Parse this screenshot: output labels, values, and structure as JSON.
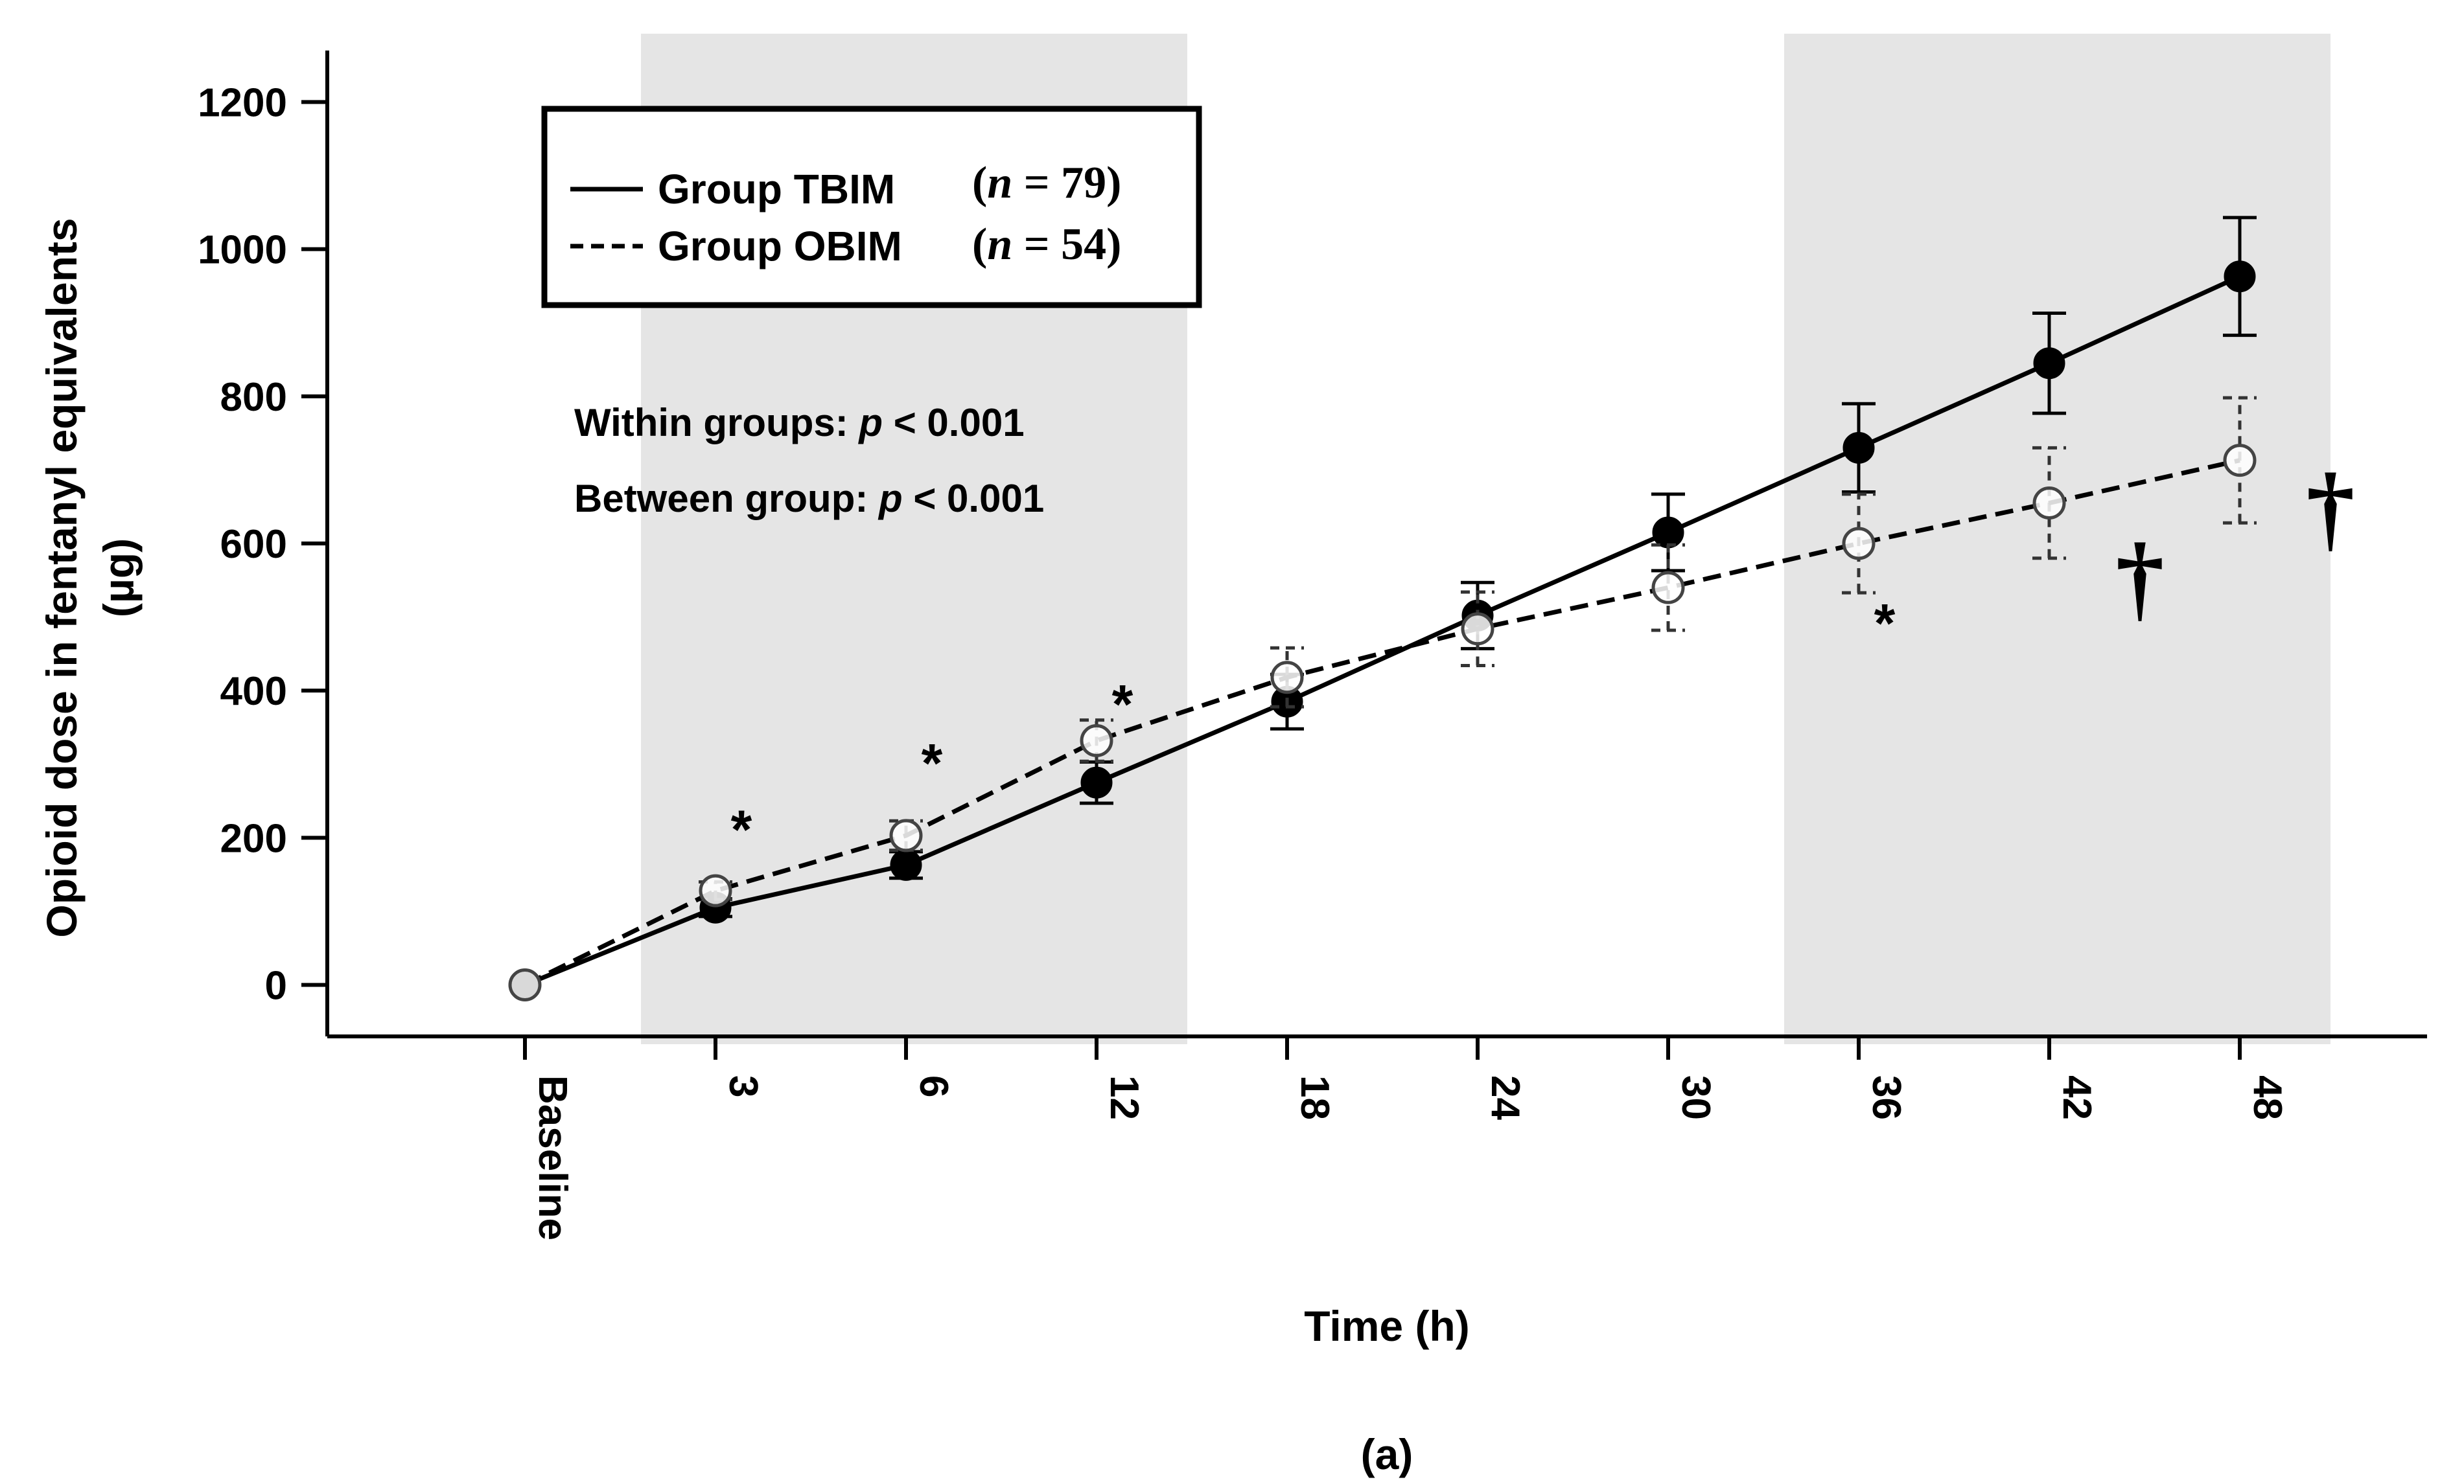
{
  "chart_data": {
    "type": "line",
    "title": "",
    "panel_label": "(a)",
    "xlabel": "Time (h)",
    "ylabel": "Opioid dose in fentanyl equivalents",
    "ylabel_unit": "(µg)",
    "categories": [
      "Baseline",
      "3",
      "6",
      "12",
      "18",
      "24",
      "30",
      "36",
      "42",
      "48"
    ],
    "yticks": [
      0,
      200,
      400,
      600,
      800,
      1000,
      1200
    ],
    "ylim": [
      -70,
      1270
    ],
    "shaded_regions": [
      {
        "from_category": 1,
        "to_category": 3
      },
      {
        "from_category": 7,
        "to_category": 9
      }
    ],
    "series": [
      {
        "name": "Group TBIM",
        "n_label": "(n = 79)",
        "n_prefix": "(",
        "n_italic": "n",
        "n_suffix": " = 79)",
        "line": "solid",
        "marker": "filled",
        "values": [
          0,
          105,
          163,
          275,
          385,
          502,
          615,
          730,
          845,
          963
        ],
        "errors": [
          0,
          12,
          18,
          28,
          37,
          45,
          52,
          60,
          68,
          80
        ]
      },
      {
        "name": "Group OBIM",
        "n_label": "(n = 54)",
        "n_prefix": "(",
        "n_italic": "n",
        "n_suffix": " = 54)",
        "line": "dashed",
        "marker": "open",
        "values": [
          0,
          128,
          203,
          332,
          418,
          484,
          540,
          600,
          655,
          713
        ],
        "errors": [
          0,
          12,
          20,
          28,
          40,
          50,
          58,
          67,
          75,
          85
        ]
      }
    ],
    "annotations": [
      {
        "text": "Within groups: ",
        "italic": "p",
        "suffix": " < 0.001"
      },
      {
        "text": "Between group: ",
        "italic": "p",
        "suffix": " < 0.001"
      }
    ],
    "significance_marks": [
      {
        "symbol": "*",
        "category": 1,
        "value": 230
      },
      {
        "symbol": "*",
        "category": 2,
        "value": 320
      },
      {
        "symbol": "*",
        "category": 3,
        "value": 400
      },
      {
        "symbol": "*",
        "category": 7,
        "value": 510
      },
      {
        "symbol": "†",
        "category": 8,
        "value": 545
      },
      {
        "symbol": "†",
        "category": 9,
        "value": 640
      }
    ]
  }
}
